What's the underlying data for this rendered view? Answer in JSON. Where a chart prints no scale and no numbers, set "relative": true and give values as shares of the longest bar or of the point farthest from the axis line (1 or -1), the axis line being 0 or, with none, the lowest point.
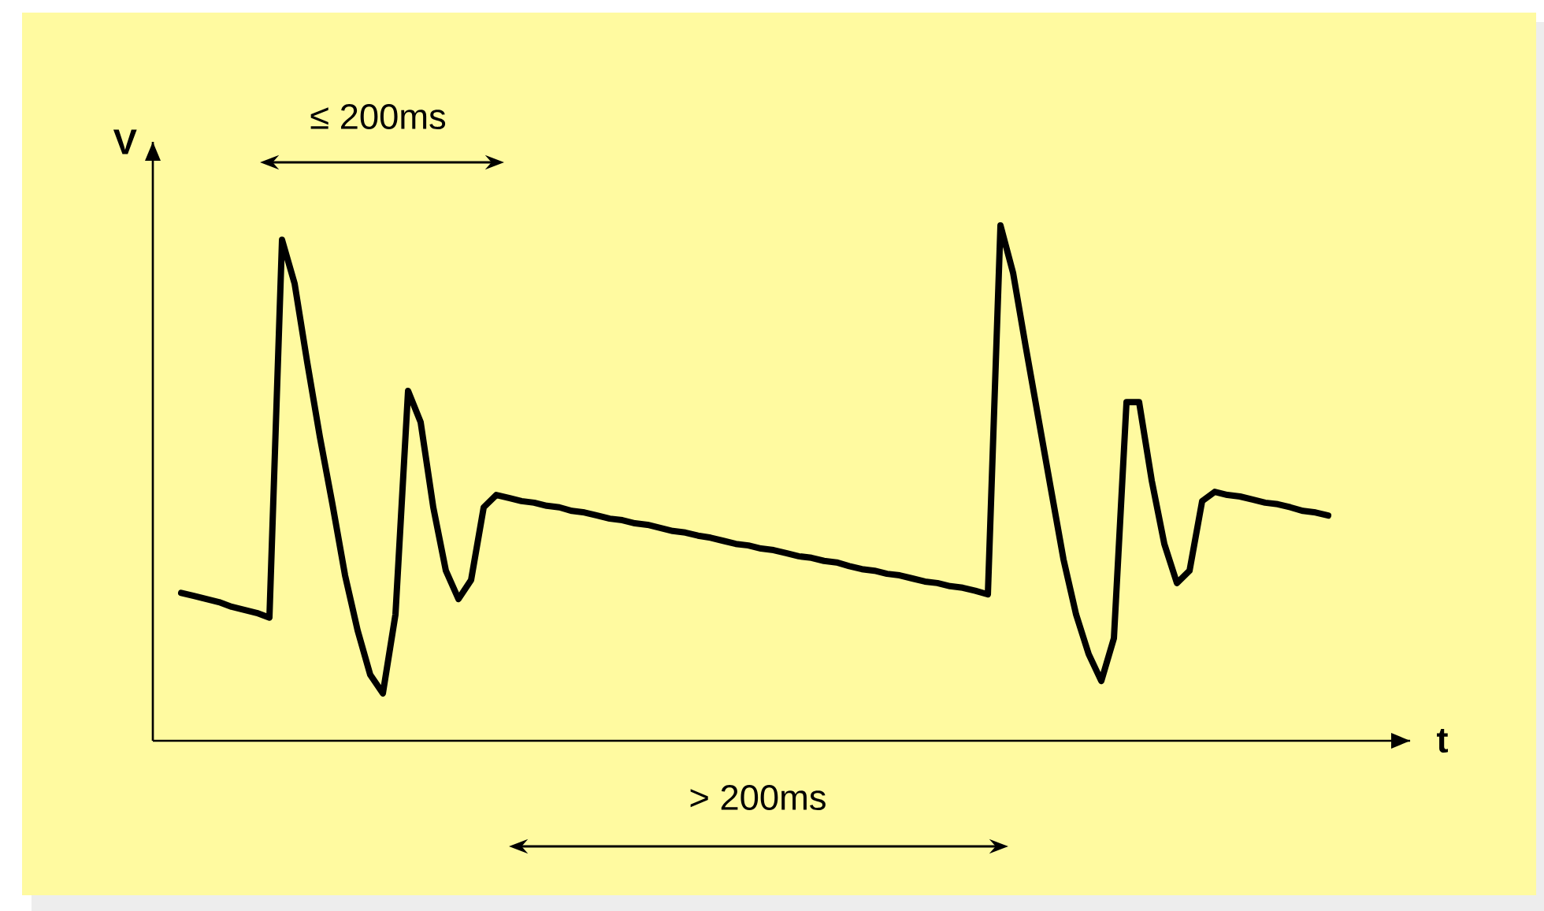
{
  "chart_data": {
    "type": "line",
    "relative": true,
    "xlabel": "t",
    "ylabel": "V",
    "categories": [
      null,
      null,
      null,
      null,
      null,
      null,
      null,
      null,
      null,
      null,
      null,
      null,
      null,
      null,
      null,
      null,
      null,
      null,
      null,
      null,
      null,
      null,
      null,
      null,
      null,
      null,
      null,
      null,
      null,
      null,
      null,
      null,
      null,
      null,
      null,
      null,
      null,
      null,
      null,
      null,
      null,
      null,
      null,
      null,
      null,
      null,
      null,
      null,
      null,
      null,
      null,
      null,
      null,
      null,
      null,
      null,
      null,
      null,
      null,
      null,
      null,
      null,
      null,
      null,
      null,
      null,
      null,
      null,
      null,
      null,
      null,
      null,
      null,
      null,
      null,
      null,
      null,
      null,
      null,
      null,
      null,
      null,
      null,
      null,
      null,
      null,
      null,
      null,
      null,
      null,
      null,
      null
    ],
    "series": [
      {
        "color": "#000000",
        "values": [
          0.287,
          0.281,
          0.275,
          0.269,
          0.26,
          0.254,
          0.248,
          0.239,
          0.972,
          0.887,
          0.734,
          0.59,
          0.459,
          0.321,
          0.214,
          0.128,
          0.092,
          0.245,
          0.679,
          0.618,
          0.453,
          0.33,
          0.275,
          0.312,
          0.453,
          0.477,
          0.471,
          0.465,
          0.462,
          0.456,
          0.453,
          0.446,
          0.443,
          0.437,
          0.431,
          0.428,
          0.422,
          0.419,
          0.413,
          0.407,
          0.404,
          0.398,
          0.394,
          0.388,
          0.382,
          0.379,
          0.373,
          0.37,
          0.364,
          0.358,
          0.355,
          0.349,
          0.346,
          0.339,
          0.333,
          0.33,
          0.324,
          0.321,
          0.315,
          0.309,
          0.306,
          0.3,
          0.297,
          0.291,
          0.284,
          1.0,
          0.908,
          0.765,
          0.627,
          0.489,
          0.352,
          0.245,
          0.168,
          0.116,
          0.199,
          0.657,
          0.657,
          0.505,
          0.382,
          0.306,
          0.33,
          0.465,
          0.483,
          0.477,
          0.474,
          0.468,
          0.462,
          0.459,
          0.453,
          0.446,
          0.443,
          0.437
        ]
      }
    ],
    "annotations": [
      "≤ 200ms",
      "> 200ms"
    ]
  }
}
